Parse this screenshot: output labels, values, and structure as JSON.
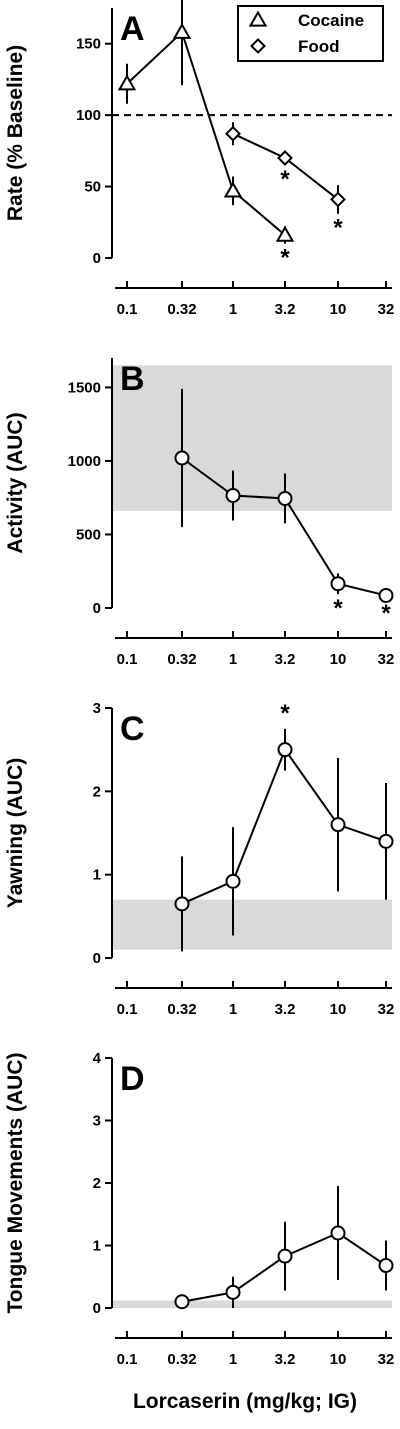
{
  "chart_data": [
    {
      "panel": "A",
      "type": "line",
      "ylabel": "Rate (% Baseline)",
      "x_ticks": [
        "0.1",
        "0.32",
        "1",
        "3.2",
        "10",
        "32"
      ],
      "y_ticks": [
        "0",
        "50",
        "100",
        "150"
      ],
      "ylim": [
        0,
        175
      ],
      "x_scale": "log",
      "reference_line": 100,
      "legend": {
        "placement": "top-right"
      },
      "series": [
        {
          "name": "Cocaine",
          "marker": "triangle",
          "points": [
            {
              "x": 0.1,
              "y": 122,
              "err": 14
            },
            {
              "x": 0.32,
              "y": 158,
              "err": 37
            },
            {
              "x": 1,
              "y": 47,
              "err": 10
            },
            {
              "x": 3.2,
              "y": 16,
              "err": 6,
              "sig": "*"
            }
          ]
        },
        {
          "name": "Food",
          "marker": "diamond",
          "points": [
            {
              "x": 1,
              "y": 87,
              "err": 8
            },
            {
              "x": 3.2,
              "y": 70,
              "err": 5,
              "sig": "*"
            },
            {
              "x": 10,
              "y": 41,
              "err": 10,
              "sig": "*"
            }
          ]
        }
      ]
    },
    {
      "panel": "B",
      "type": "line",
      "ylabel": "Activity (AUC)",
      "x_ticks": [
        "0.1",
        "0.32",
        "1",
        "3.2",
        "10",
        "32"
      ],
      "y_ticks": [
        "0",
        "500",
        "1000",
        "1500"
      ],
      "ylim": [
        0,
        1700
      ],
      "x_scale": "log",
      "shaded_band": [
        660,
        1650
      ],
      "series": [
        {
          "marker": "circle",
          "points": [
            {
              "x": 0.32,
              "y": 1020,
              "err": 470
            },
            {
              "x": 1,
              "y": 765,
              "err": 170
            },
            {
              "x": 3.2,
              "y": 745,
              "err": 170
            },
            {
              "x": 10,
              "y": 165,
              "err": 70,
              "sig": "*"
            },
            {
              "x": 32,
              "y": 85,
              "err": 25,
              "sig": "*"
            }
          ]
        }
      ]
    },
    {
      "panel": "C",
      "type": "line",
      "ylabel": "Yawning (AUC)",
      "x_ticks": [
        "0.1",
        "0.32",
        "1",
        "3.2",
        "10",
        "32"
      ],
      "y_ticks": [
        "0",
        "1",
        "2",
        "3"
      ],
      "ylim": [
        0,
        3
      ],
      "x_scale": "log",
      "shaded_band": [
        0.1,
        0.7
      ],
      "series": [
        {
          "marker": "circle",
          "points": [
            {
              "x": 0.32,
              "y": 0.65,
              "err": 0.57
            },
            {
              "x": 1,
              "y": 0.92,
              "err": 0.65
            },
            {
              "x": 3.2,
              "y": 2.5,
              "err": 0.25,
              "sig": "*"
            },
            {
              "x": 10,
              "y": 1.6,
              "err": 0.8
            },
            {
              "x": 32,
              "y": 1.4,
              "err": 0.7
            }
          ]
        }
      ]
    },
    {
      "panel": "D",
      "type": "line",
      "ylabel": "Tongue Movements (AUC)",
      "xlabel": "Lorcaserin (mg/kg; IG)",
      "x_ticks": [
        "0.1",
        "0.32",
        "1",
        "3.2",
        "10",
        "32"
      ],
      "y_ticks": [
        "0",
        "1",
        "2",
        "3",
        "4"
      ],
      "ylim": [
        0,
        4
      ],
      "x_scale": "log",
      "shaded_band": [
        0,
        0.12
      ],
      "series": [
        {
          "marker": "circle",
          "points": [
            {
              "x": 0.32,
              "y": 0.1,
              "err": 0
            },
            {
              "x": 1,
              "y": 0.25,
              "err": 0.25
            },
            {
              "x": 3.2,
              "y": 0.83,
              "err": 0.55
            },
            {
              "x": 10,
              "y": 1.2,
              "err": 0.75
            },
            {
              "x": 32,
              "y": 0.68,
              "err": 0.4
            }
          ]
        }
      ]
    }
  ]
}
